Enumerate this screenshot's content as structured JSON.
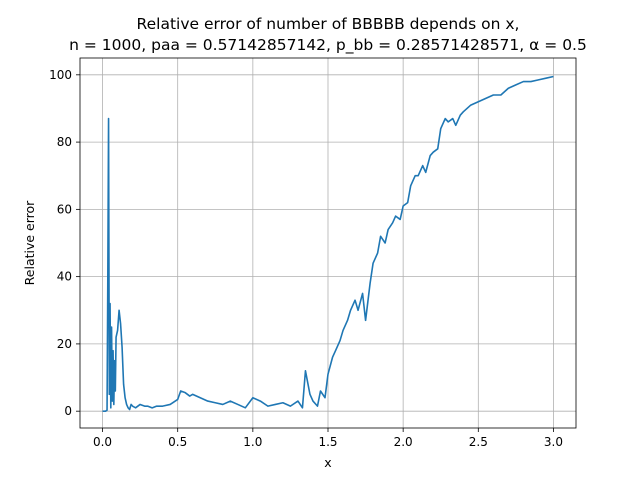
{
  "chart_data": {
    "type": "line",
    "title_line1": "Relative error of number of BBBBB depends on x,",
    "title_line2": "n = 1000, paa = 0.57142857142, p_bb = 0.28571428571, α = 0.5",
    "xlabel": "x",
    "ylabel": "Relative error",
    "xlim": [
      -0.15,
      3.15
    ],
    "ylim": [
      -5,
      105
    ],
    "xticks": [
      0.0,
      0.5,
      1.0,
      1.5,
      2.0,
      2.5,
      3.0
    ],
    "xtick_labels": [
      "0.0",
      "0.5",
      "1.0",
      "1.5",
      "2.0",
      "2.5",
      "3.0"
    ],
    "yticks": [
      0,
      20,
      40,
      60,
      80,
      100
    ],
    "ytick_labels": [
      "0",
      "20",
      "40",
      "60",
      "80",
      "100"
    ],
    "grid": true,
    "line_color": "#1f77b4",
    "series": [
      {
        "x": [
          0.0,
          0.02,
          0.03,
          0.035,
          0.04,
          0.045,
          0.05,
          0.055,
          0.06,
          0.065,
          0.07,
          0.075,
          0.08,
          0.085,
          0.09,
          0.1,
          0.11,
          0.12,
          0.13,
          0.14,
          0.15,
          0.16,
          0.17,
          0.18,
          0.19,
          0.2,
          0.22,
          0.25,
          0.28,
          0.3,
          0.33,
          0.36,
          0.4,
          0.45,
          0.5,
          0.52,
          0.55,
          0.58,
          0.6,
          0.65,
          0.7,
          0.75,
          0.8,
          0.85,
          0.9,
          0.95,
          1.0,
          1.05,
          1.1,
          1.15,
          1.2,
          1.25,
          1.3,
          1.33,
          1.35,
          1.38,
          1.4,
          1.43,
          1.45,
          1.48,
          1.5,
          1.53,
          1.55,
          1.58,
          1.6,
          1.63,
          1.65,
          1.68,
          1.7,
          1.73,
          1.75,
          1.78,
          1.8,
          1.83,
          1.85,
          1.88,
          1.9,
          1.93,
          1.95,
          1.98,
          2.0,
          2.03,
          2.05,
          2.08,
          2.1,
          2.13,
          2.15,
          2.18,
          2.2,
          2.23,
          2.25,
          2.28,
          2.3,
          2.33,
          2.35,
          2.38,
          2.4,
          2.45,
          2.5,
          2.55,
          2.6,
          2.65,
          2.7,
          2.75,
          2.8,
          2.85,
          2.9,
          2.95,
          3.0
        ],
        "y": [
          0,
          0,
          0.3,
          40,
          87,
          5,
          32,
          1,
          25,
          3,
          18,
          2,
          15,
          6,
          22,
          24,
          30,
          26,
          19,
          8,
          4,
          2,
          1,
          0.5,
          2,
          1.5,
          1,
          2,
          1.5,
          1.5,
          1,
          1.5,
          1.5,
          2,
          3.5,
          6,
          5.5,
          4.5,
          5,
          4,
          3,
          2.5,
          2,
          3,
          2,
          1,
          4,
          3,
          1.5,
          2,
          2.5,
          1.5,
          3,
          1,
          12,
          5,
          3,
          1.5,
          6,
          4,
          11,
          16,
          18,
          21,
          24,
          27,
          30,
          33,
          30,
          35,
          27,
          38,
          44,
          47,
          52,
          50,
          54,
          56,
          58,
          57,
          61,
          62,
          67,
          70,
          70,
          73,
          71,
          76,
          77,
          78,
          84,
          87,
          86,
          87,
          85,
          88,
          89,
          91,
          92,
          93,
          94,
          94,
          96,
          97,
          98,
          98,
          98.5,
          99,
          99.5
        ]
      }
    ]
  }
}
